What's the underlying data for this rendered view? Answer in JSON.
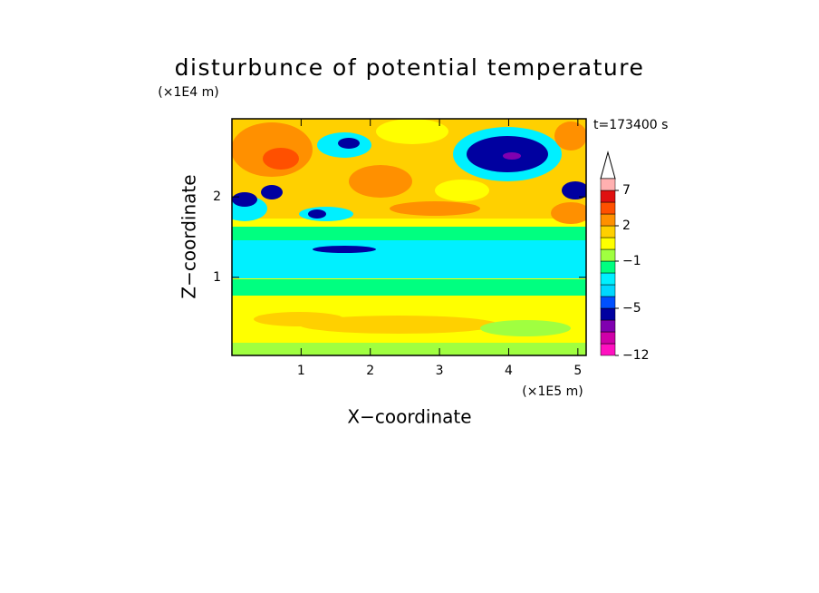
{
  "chart_data": {
    "type": "contour",
    "title": "disturbunce of potential temperature",
    "y_unit": "(×1E4 m)",
    "x_unit": "(×1E5 m)",
    "x_label": "X−coordinate",
    "y_label": "Z−coordinate",
    "annotation": "t=173400 s",
    "xlim": [
      0,
      5.12
    ],
    "ylim": [
      0.03,
      2.97
    ],
    "xticks": [
      1,
      2,
      3,
      4,
      5
    ],
    "yticks": [
      1,
      2
    ],
    "colorbar": {
      "levels": [
        -12,
        -10,
        -8,
        -6,
        -5,
        -4,
        -3,
        -2,
        -1,
        0,
        1,
        2,
        3,
        5,
        7,
        9
      ],
      "colors": [
        "#ff10c0",
        "#d000a8",
        "#8000b0",
        "#0000a0",
        "#0050ff",
        "#00d8ff",
        "#00f0ff",
        "#00ff80",
        "#a0ff40",
        "#ffff00",
        "#ffd000",
        "#ff9000",
        "#ff5000",
        "#e01010",
        "#ffb0b0"
      ],
      "ticks": [
        {
          "value": -12,
          "label": "−12"
        },
        {
          "value": -5,
          "label": "−5"
        },
        {
          "value": -1,
          "label": "−1"
        },
        2,
        7
      ],
      "extend": "max"
    }
  }
}
